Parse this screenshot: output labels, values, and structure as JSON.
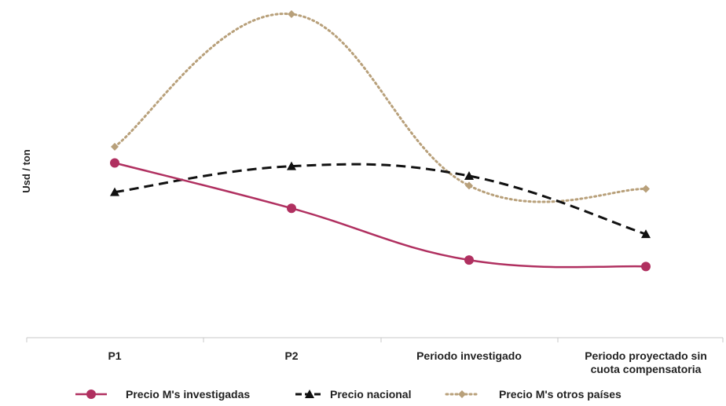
{
  "chart_data": {
    "type": "line",
    "title": "",
    "xlabel": "",
    "ylabel": "Usd / ton",
    "categories": [
      [
        "P1"
      ],
      [
        "P2"
      ],
      [
        "Periodo investigado"
      ],
      [
        "Periodo proyectado sin",
        "cuota compensatoria"
      ]
    ],
    "ylim": [
      0,
      100
    ],
    "grid": false,
    "legend_position": "bottom",
    "series": [
      {
        "name": "Precio M's investigadas",
        "values": [
          54,
          40,
          24,
          22
        ],
        "color": "#b03060",
        "style": "solid",
        "marker": "circle"
      },
      {
        "name": "Precio nacional",
        "values": [
          45,
          53,
          50,
          32
        ],
        "color": "#111111",
        "style": "dashed",
        "marker": "triangle"
      },
      {
        "name": "Precio M's otros países",
        "values": [
          59,
          100,
          47,
          46
        ],
        "color": "#b8a07a",
        "style": "dotted",
        "marker": "diamond"
      }
    ]
  }
}
